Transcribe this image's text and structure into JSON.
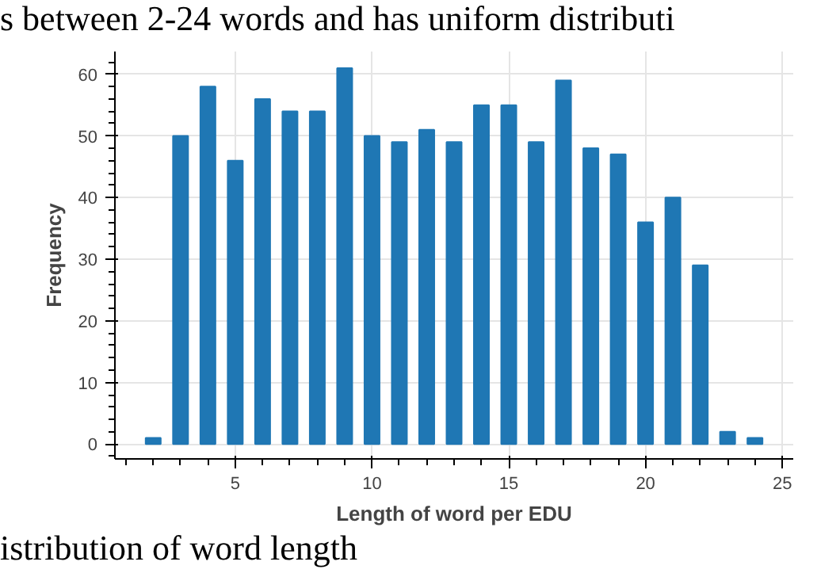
{
  "chart_data": {
    "type": "bar",
    "xlabel": "Length of word per EDU",
    "ylabel": "Frequency",
    "x": [
      2,
      3,
      4,
      5,
      6,
      7,
      8,
      9,
      10,
      11,
      12,
      13,
      14,
      15,
      16,
      17,
      18,
      19,
      20,
      21,
      22,
      23,
      24
    ],
    "values": [
      1,
      50,
      58,
      46,
      56,
      54,
      54,
      61,
      50,
      49,
      51,
      49,
      55,
      55,
      49,
      59,
      48,
      47,
      36,
      40,
      29,
      2,
      1
    ],
    "color": "#1f77b4",
    "xlim": [
      0.6,
      25.4
    ],
    "xticks": [
      5,
      10,
      15,
      20,
      25
    ],
    "ylim": [
      -2.4,
      63.7
    ],
    "yticks": [
      0,
      10,
      20,
      30,
      40,
      50,
      60
    ],
    "grid": true,
    "annotations": [
      "s between 2-24 words and has uniform distributi",
      "istribution of word length"
    ]
  }
}
